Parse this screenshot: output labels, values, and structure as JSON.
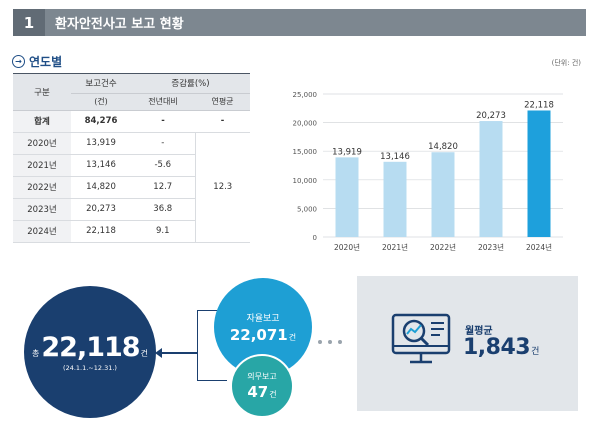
{
  "header": {
    "number": "1",
    "title": "환자안전사고 보고 현황"
  },
  "section": {
    "label": "연도별",
    "icon": "arrow-right-circle-icon"
  },
  "unit_label": "(단위: 건)",
  "table": {
    "headers": {
      "category": "구분",
      "reports": "보고건수",
      "reports_unit": "(건)",
      "growth": "증감률(%)",
      "yoy": "전년대비",
      "annual_avg": "연평균"
    },
    "rows": [
      {
        "label": "합계",
        "count": "84,276",
        "yoy": "-",
        "avg": "-"
      },
      {
        "label": "2020년",
        "count": "13,919",
        "yoy": "-"
      },
      {
        "label": "2021년",
        "count": "13,146",
        "yoy": "-5.6"
      },
      {
        "label": "2022년",
        "count": "14,820",
        "yoy": "12.7"
      },
      {
        "label": "2023년",
        "count": "20,273",
        "yoy": "36.8"
      },
      {
        "label": "2024년",
        "count": "22,118",
        "yoy": "9.1"
      }
    ],
    "annual_avg_value": "12.3"
  },
  "chart_data": {
    "type": "bar",
    "categories": [
      "2020년",
      "2021년",
      "2022년",
      "2023년",
      "2024년"
    ],
    "values": [
      13919,
      13146,
      14820,
      20273,
      22118
    ],
    "value_labels": [
      "13,919",
      "13,146",
      "14,820",
      "20,273",
      "22,118"
    ],
    "yticks": [
      "0",
      "5,000",
      "10,000",
      "15,000",
      "20,000",
      "25,000"
    ],
    "ylim": [
      0,
      25000
    ],
    "grid": true,
    "colors": {
      "bar": "#b7dcf1",
      "highlight": "#1ea0dc"
    },
    "title": "",
    "xlabel": "",
    "ylabel": ""
  },
  "summary": {
    "total_prefix": "총",
    "total_value": "22,118",
    "total_suffix": "건",
    "period": "(24.1.1.~12.31.)",
    "voluntary_label": "자율보고",
    "voluntary_value": "22,071",
    "voluntary_suffix": "건",
    "mandatory_label": "의무보고",
    "mandatory_value": "47",
    "mandatory_suffix": "건",
    "monthly_label": "월평균",
    "monthly_value": "1,843",
    "monthly_suffix": "건"
  },
  "colors": {
    "navy": "#1a3f6f",
    "blue": "#1e9fd4",
    "teal": "#28a6a6",
    "header_gray": "#7d8790"
  }
}
